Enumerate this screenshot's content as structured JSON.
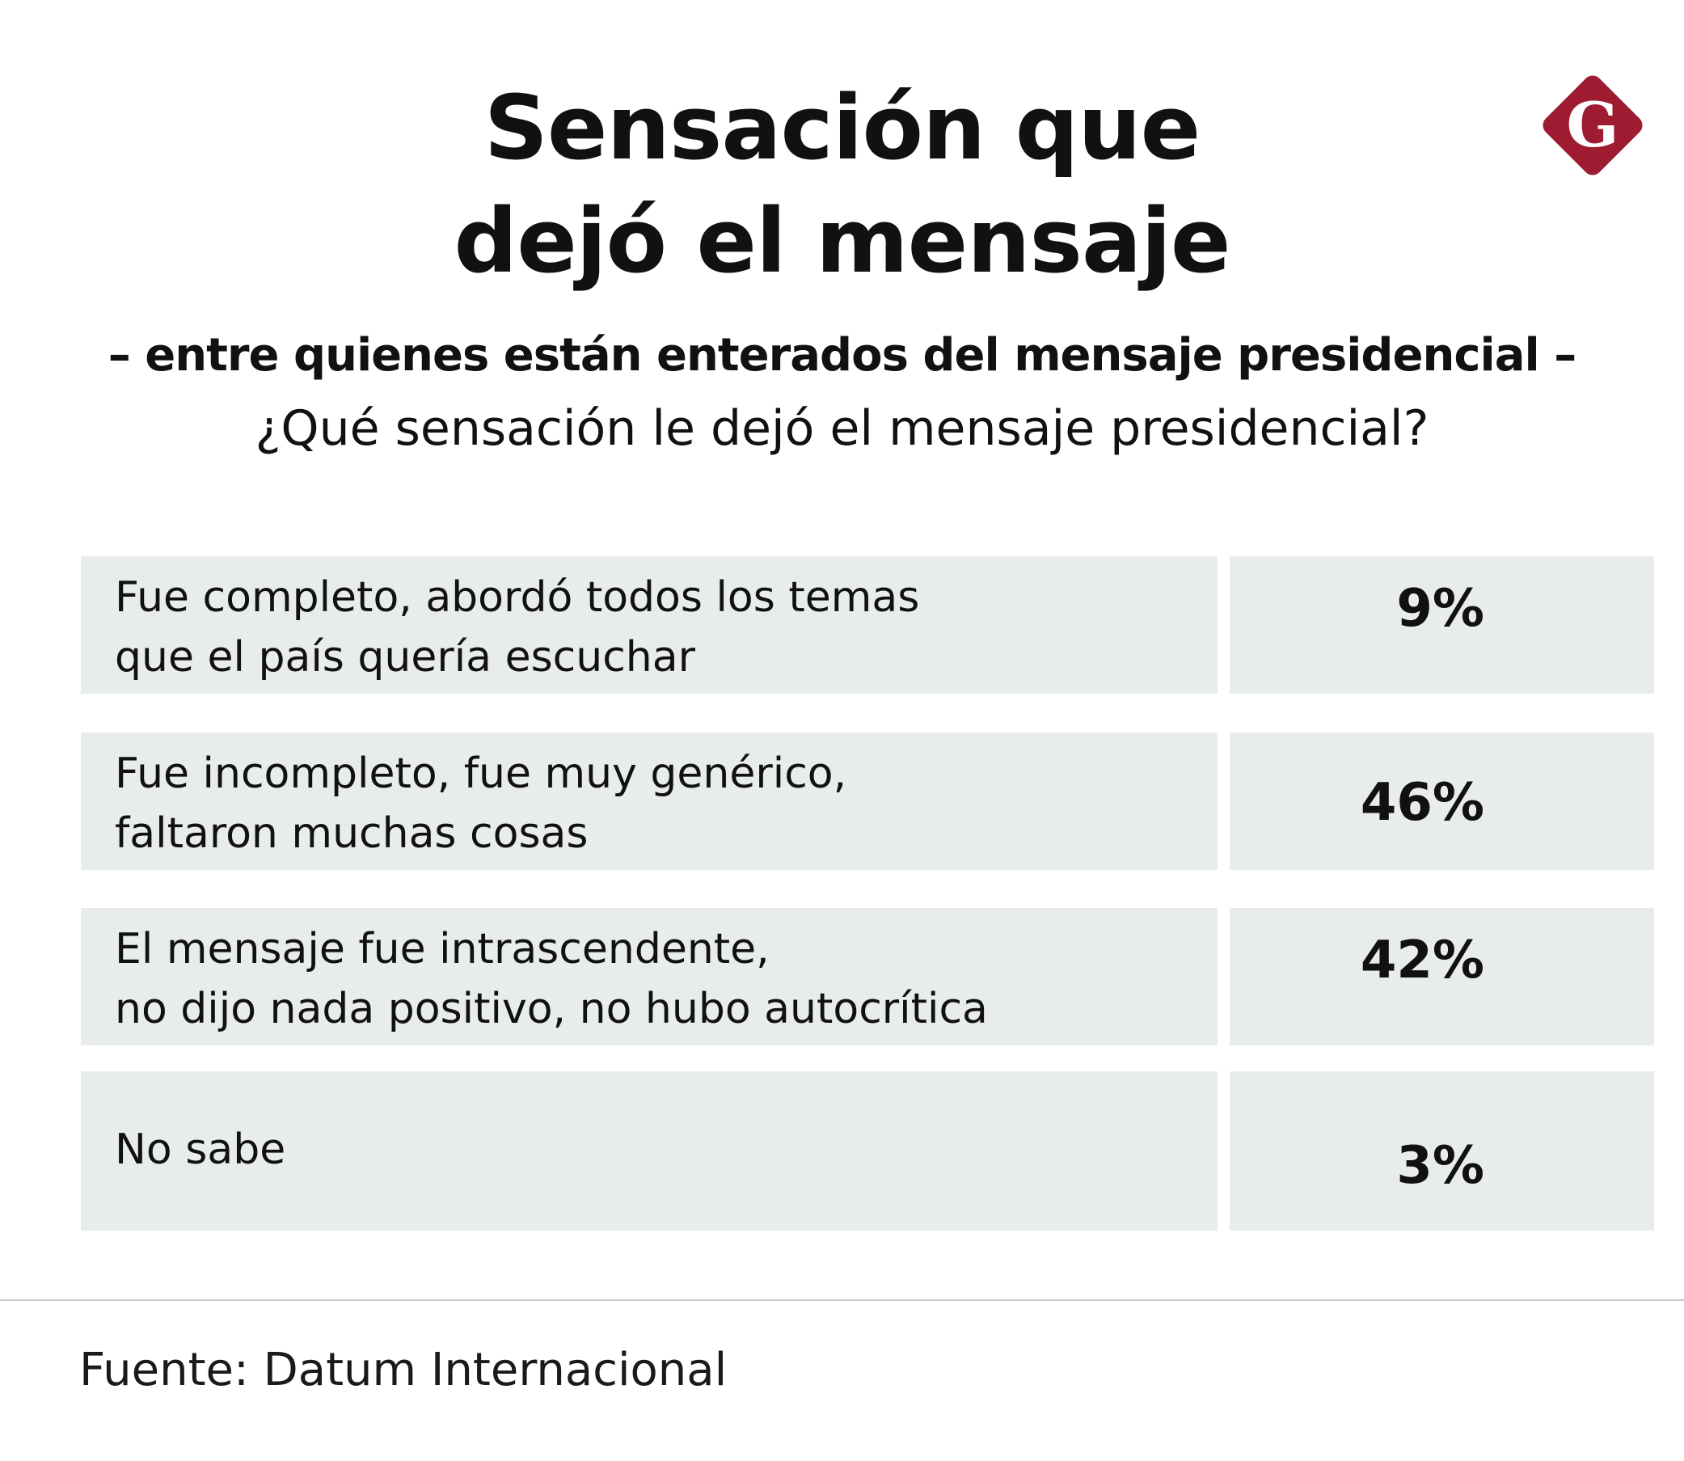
{
  "title": {
    "line1": "Sensación que",
    "line2": "dejó el mensaje"
  },
  "subtitle": "– entre quienes están enterados del mensaje presidencial –",
  "question": "¿Qué sensación le dejó el mensaje presidencial?",
  "logo": {
    "icon": "diamond-g-logo-icon",
    "letter": "G",
    "color": "#9e1b32"
  },
  "chart_data": {
    "type": "table",
    "title": "Sensación que dejó el mensaje",
    "subtitle": "– entre quienes están enterados del mensaje presidencial –",
    "question": "¿Qué sensación le dejó el mensaje presidencial?",
    "categories": [
      "Fue completo, abordó todos los temas\nque el país quería escuchar",
      "Fue incompleto, fue muy genérico,\nfaltaron muchas cosas",
      "El mensaje fue intrascendente,\nno dijo nada positivo, no hubo autocrítica",
      "No sabe"
    ],
    "values": [
      9,
      46,
      42,
      3
    ],
    "value_labels": [
      "9%",
      "46%",
      "42%",
      "3%"
    ],
    "unit": "%"
  },
  "source": "Fuente: Datum Internacional",
  "colors": {
    "row_background": "#e8ecea",
    "text": "#111111",
    "divider": "#c9c9c9"
  }
}
